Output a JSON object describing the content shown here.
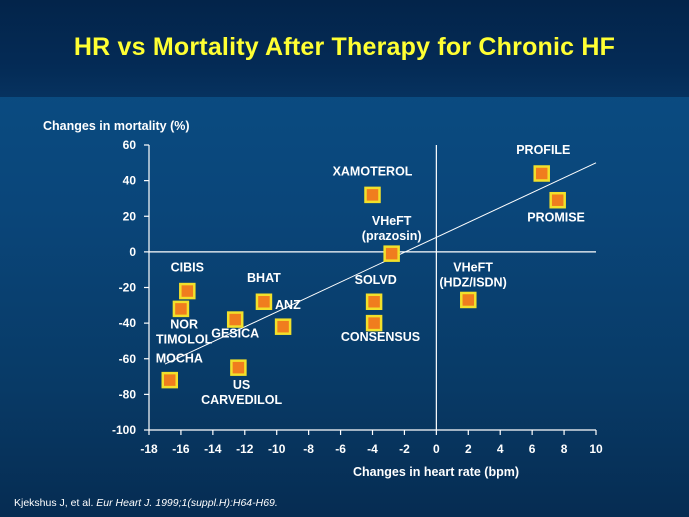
{
  "slide": {
    "title": "HR vs Mortality After Therapy for Chronic HF",
    "citation_authors": "Kjekshus J, et al. ",
    "citation_journal": "Eur Heart J. 1999;1(suppl.H):H64-H69."
  },
  "colors": {
    "title": "#ffff33",
    "text": "#ffffff",
    "marker_fill": "#f07d1e",
    "marker_border": "#f2e02a",
    "axis": "#ffffff"
  },
  "chart_data": {
    "type": "scatter",
    "title": "HR vs Mortality After Therapy for Chronic HF",
    "xlabel": "Changes in heart rate (bpm)",
    "ylabel": "Changes in mortality (%)",
    "xlim": [
      -18,
      10
    ],
    "ylim": [
      -100,
      60
    ],
    "x_ticks": [
      -18,
      -16,
      -14,
      -12,
      -10,
      -8,
      -6,
      -4,
      -2,
      0,
      2,
      4,
      6,
      8,
      10
    ],
    "y_ticks": [
      60,
      40,
      20,
      0,
      -20,
      -40,
      -60,
      -80,
      -100
    ],
    "grid": false,
    "points": [
      {
        "name": "XAMOTEROL",
        "x": -4.0,
        "y": 32
      },
      {
        "name": "PROFILE",
        "x": 6.6,
        "y": 44
      },
      {
        "name": "PROMISE",
        "x": 7.6,
        "y": 29
      },
      {
        "name": "VHeFT (prazosin)",
        "x": -2.8,
        "y": -1
      },
      {
        "name": "VHeFT (HDZ/ISDN)",
        "x": 2.0,
        "y": -27
      },
      {
        "name": "CIBIS",
        "x": -15.6,
        "y": -22
      },
      {
        "name": "BHAT",
        "x": -10.8,
        "y": -28
      },
      {
        "name": "ANZ",
        "x": -9.6,
        "y": -42
      },
      {
        "name": "SOLVD",
        "x": -3.9,
        "y": -28
      },
      {
        "name": "CONSENSUS",
        "x": -3.9,
        "y": -40
      },
      {
        "name": "NOR TIMOLOL",
        "x": -16.0,
        "y": -32
      },
      {
        "name": "GESICA",
        "x": -12.6,
        "y": -38
      },
      {
        "name": "MOCHA",
        "x": -16.7,
        "y": -72
      },
      {
        "name": "US CARVEDILOL",
        "x": -12.4,
        "y": -65
      }
    ],
    "labels": [
      {
        "lines": [
          "XAMOTEROL"
        ],
        "x": -4.0,
        "y": 43
      },
      {
        "lines": [
          "PROFILE"
        ],
        "x": 6.7,
        "y": 55
      },
      {
        "lines": [
          "PROMISE"
        ],
        "x": 7.5,
        "y": 17
      },
      {
        "lines": [
          "VHeFT",
          "(prazosin)"
        ],
        "x": -2.8,
        "y": 15
      },
      {
        "lines": [
          "VHeFT",
          "(HDZ/ISDN)"
        ],
        "x": 2.3,
        "y": -11
      },
      {
        "lines": [
          "CIBIS"
        ],
        "x": -15.6,
        "y": -11
      },
      {
        "lines": [
          "BHAT"
        ],
        "x": -10.8,
        "y": -17
      },
      {
        "lines": [
          "ANZ"
        ],
        "x": -9.3,
        "y": -32
      },
      {
        "lines": [
          "SOLVD"
        ],
        "x": -3.8,
        "y": -18
      },
      {
        "lines": [
          "CONSENSUS"
        ],
        "x": -3.5,
        "y": -50
      },
      {
        "lines": [
          "NOR",
          "TIMOLOL"
        ],
        "x": -15.8,
        "y": -43
      },
      {
        "lines": [
          "GESICA"
        ],
        "x": -12.6,
        "y": -48
      },
      {
        "lines": [
          "MOCHA"
        ],
        "x": -16.1,
        "y": -62
      },
      {
        "lines": [
          "US",
          "CARVEDILOL"
        ],
        "x": -12.2,
        "y": -77
      }
    ],
    "trend_line": {
      "x1": -17.0,
      "y1": -63,
      "x2": 10.0,
      "y2": 50
    }
  }
}
